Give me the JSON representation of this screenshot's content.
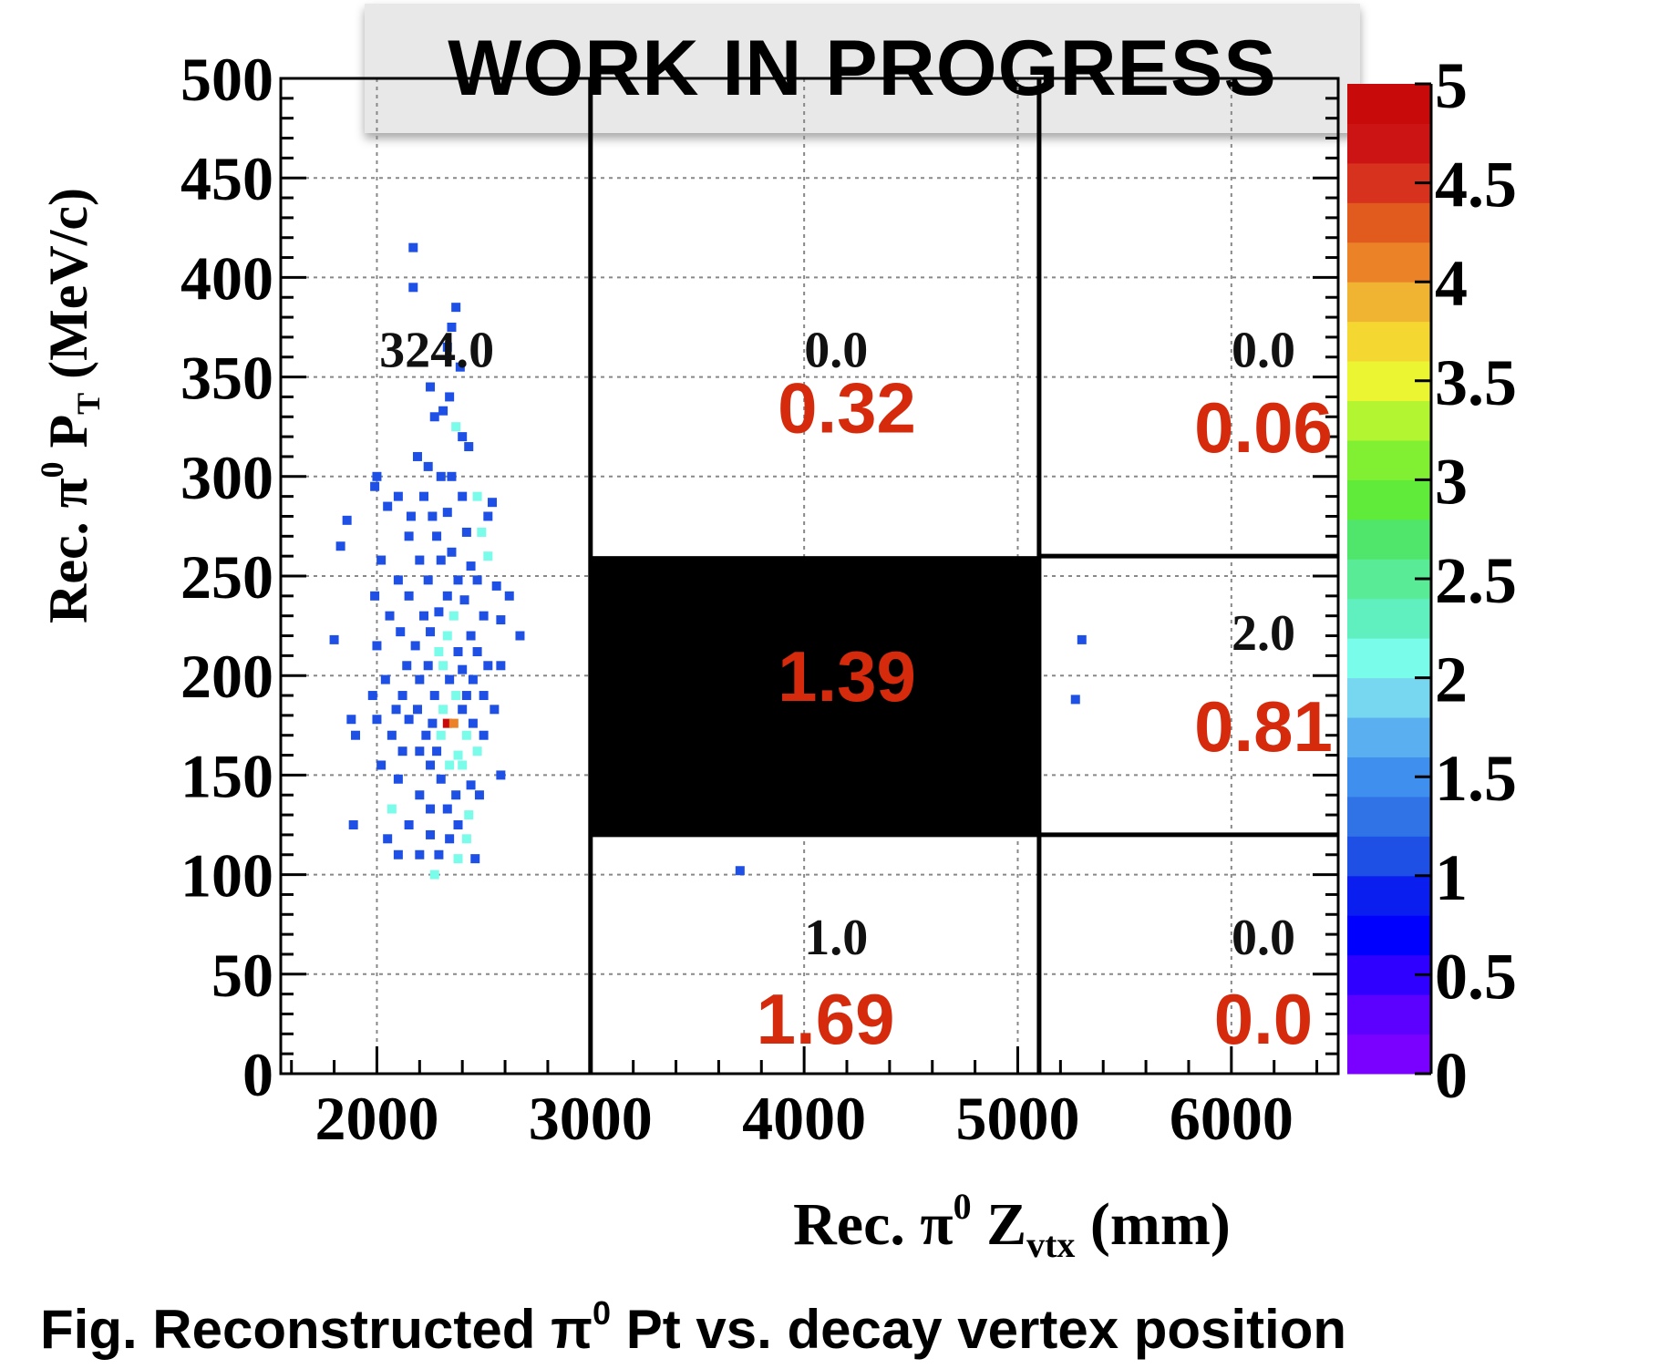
{
  "banner": "WORK IN PROGRESS",
  "caption": {
    "prefix": "Fig. Reconstructed π",
    "sup": "0",
    "suffix": " Pt vs. decay vertex position"
  },
  "colors": {
    "annotation_red": "#d62a0c",
    "region_fill": "#000000",
    "axis": "#000000",
    "grid": "#888888"
  },
  "chart_data": {
    "type": "heatmap",
    "title": "",
    "xlabel": {
      "main": "Rec.  π",
      "sup": "0",
      "var": " Z",
      "sub": "vtx",
      "unit": " (mm)"
    },
    "ylabel": {
      "main": "Rec.  π",
      "sup": "0",
      "var": " P",
      "sub": "T",
      "unit": " (MeV/c)"
    },
    "xlim": [
      1550,
      6500
    ],
    "ylim": [
      0,
      500
    ],
    "x_ticks": [
      2000,
      3000,
      4000,
      5000,
      6000
    ],
    "y_ticks": [
      0,
      50,
      100,
      150,
      200,
      250,
      300,
      350,
      400,
      450,
      500
    ],
    "grid": true,
    "colorbar": {
      "range": [
        0,
        5
      ],
      "tick_labels": [
        "0",
        "0.5",
        "1",
        "1.5",
        "2",
        "2.5",
        "3",
        "3.5",
        "4",
        "4.5",
        "5"
      ],
      "colors": [
        "#7a00ff",
        "#5c00ff",
        "#2f00ff",
        "#0000ff",
        "#0a1ef0",
        "#1f50e6",
        "#2f73e6",
        "#3f8fee",
        "#5aaff0",
        "#78d7f0",
        "#7afcea",
        "#60f0c0",
        "#5aeb96",
        "#50e66b",
        "#60eb3a",
        "#82f032",
        "#b4f532",
        "#ebf532",
        "#f5d732",
        "#f0b432",
        "#eb8228",
        "#e15a1e",
        "#d7321e",
        "#cd1414",
        "#c80a0a"
      ]
    },
    "region_boundaries": {
      "vertical": [
        3000,
        5100
      ],
      "horizontal": [
        {
          "y": 120,
          "x_from": 3000,
          "x_to": 6500
        },
        {
          "y": 260,
          "x_from": 5100,
          "x_to": 6500
        }
      ]
    },
    "signal_region": {
      "x": [
        3000,
        5100
      ],
      "y": [
        120,
        260
      ]
    },
    "region_counts": [
      {
        "x": 2280,
        "y": 355,
        "label": "324.0"
      },
      {
        "x": 4150,
        "y": 355,
        "label": "0.0"
      },
      {
        "x": 6150,
        "y": 355,
        "label": "0.0"
      },
      {
        "x": 6150,
        "y": 213,
        "label": "2.0"
      },
      {
        "x": 4150,
        "y": 60,
        "label": "1.0"
      },
      {
        "x": 6150,
        "y": 60,
        "label": "0.0"
      }
    ],
    "expectations": [
      {
        "x": 4200,
        "y": 335,
        "label": "0.32"
      },
      {
        "x": 6150,
        "y": 325,
        "label": "0.06"
      },
      {
        "x": 4200,
        "y": 200,
        "label": "1.39"
      },
      {
        "x": 6150,
        "y": 175,
        "label": "0.81"
      },
      {
        "x": 4100,
        "y": 28,
        "label": "1.69"
      },
      {
        "x": 6150,
        "y": 28,
        "label": "0.0"
      }
    ],
    "cells": [
      [
        2170,
        415,
        1
      ],
      [
        2170,
        395,
        1
      ],
      [
        2370,
        385,
        1
      ],
      [
        2350,
        375,
        1
      ],
      [
        2330,
        365,
        1
      ],
      [
        2390,
        355,
        1
      ],
      [
        2250,
        345,
        1
      ],
      [
        2340,
        340,
        1
      ],
      [
        2310,
        333,
        1
      ],
      [
        2370,
        325,
        2
      ],
      [
        2400,
        320,
        1
      ],
      [
        2430,
        315,
        1
      ],
      [
        2270,
        330,
        1
      ],
      [
        2190,
        310,
        1
      ],
      [
        2240,
        305,
        1
      ],
      [
        2300,
        300,
        1
      ],
      [
        2350,
        300,
        1
      ],
      [
        2000,
        300,
        1
      ],
      [
        1990,
        295,
        1
      ],
      [
        2100,
        290,
        1
      ],
      [
        2220,
        290,
        1
      ],
      [
        2400,
        290,
        1
      ],
      [
        2470,
        290,
        2
      ],
      [
        2540,
        287,
        1
      ],
      [
        2050,
        285,
        1
      ],
      [
        2160,
        280,
        1
      ],
      [
        2260,
        280,
        1
      ],
      [
        2330,
        282,
        1
      ],
      [
        1860,
        278,
        1
      ],
      [
        2520,
        280,
        1
      ],
      [
        2150,
        270,
        1
      ],
      [
        2280,
        270,
        1
      ],
      [
        2420,
        272,
        1
      ],
      [
        2490,
        272,
        2
      ],
      [
        1830,
        265,
        1
      ],
      [
        2350,
        262,
        1
      ],
      [
        2020,
        258,
        1
      ],
      [
        2200,
        258,
        1
      ],
      [
        2300,
        258,
        1
      ],
      [
        2440,
        255,
        1
      ],
      [
        2520,
        260,
        2
      ],
      [
        2100,
        248,
        1
      ],
      [
        2240,
        248,
        1
      ],
      [
        2380,
        248,
        1
      ],
      [
        2470,
        248,
        1
      ],
      [
        2560,
        245,
        1
      ],
      [
        1990,
        240,
        1
      ],
      [
        2150,
        240,
        1
      ],
      [
        2330,
        240,
        1
      ],
      [
        2410,
        238,
        1
      ],
      [
        2620,
        240,
        1
      ],
      [
        2060,
        230,
        1
      ],
      [
        2220,
        230,
        1
      ],
      [
        2290,
        232,
        1
      ],
      [
        2360,
        230,
        2
      ],
      [
        2500,
        230,
        1
      ],
      [
        2580,
        228,
        1
      ],
      [
        2110,
        222,
        1
      ],
      [
        2250,
        222,
        1
      ],
      [
        2330,
        220,
        2
      ],
      [
        2440,
        220,
        1
      ],
      [
        2670,
        220,
        1
      ],
      [
        1800,
        218,
        1
      ],
      [
        2000,
        215,
        1
      ],
      [
        2180,
        215,
        1
      ],
      [
        2290,
        212,
        2
      ],
      [
        2380,
        212,
        1
      ],
      [
        2470,
        212,
        1
      ],
      [
        2140,
        205,
        1
      ],
      [
        2240,
        205,
        1
      ],
      [
        2310,
        205,
        2
      ],
      [
        2400,
        203,
        1
      ],
      [
        2520,
        205,
        1
      ],
      [
        2580,
        205,
        1
      ],
      [
        2040,
        198,
        1
      ],
      [
        2200,
        198,
        1
      ],
      [
        2340,
        198,
        1
      ],
      [
        2450,
        198,
        1
      ],
      [
        1980,
        190,
        1
      ],
      [
        2120,
        190,
        1
      ],
      [
        2270,
        190,
        1
      ],
      [
        2370,
        190,
        2
      ],
      [
        2420,
        190,
        1
      ],
      [
        2500,
        190,
        1
      ],
      [
        2090,
        183,
        1
      ],
      [
        2190,
        183,
        1
      ],
      [
        2310,
        183,
        2
      ],
      [
        2400,
        183,
        1
      ],
      [
        2550,
        183,
        1
      ],
      [
        1880,
        178,
        1
      ],
      [
        2000,
        178,
        1
      ],
      [
        2150,
        178,
        1
      ],
      [
        2260,
        176,
        1
      ],
      [
        2330,
        176,
        5
      ],
      [
        2360,
        176,
        4
      ],
      [
        2450,
        176,
        1
      ],
      [
        1900,
        170,
        1
      ],
      [
        2070,
        170,
        1
      ],
      [
        2230,
        170,
        1
      ],
      [
        2300,
        170,
        2
      ],
      [
        2420,
        170,
        2
      ],
      [
        2500,
        170,
        1
      ],
      [
        2120,
        162,
        1
      ],
      [
        2200,
        162,
        1
      ],
      [
        2280,
        162,
        1
      ],
      [
        2380,
        160,
        2
      ],
      [
        2470,
        162,
        2
      ],
      [
        2020,
        155,
        1
      ],
      [
        2250,
        155,
        1
      ],
      [
        2340,
        155,
        2
      ],
      [
        2400,
        155,
        2
      ],
      [
        2580,
        150,
        1
      ],
      [
        2100,
        148,
        1
      ],
      [
        2300,
        148,
        1
      ],
      [
        2440,
        145,
        1
      ],
      [
        2200,
        140,
        1
      ],
      [
        2370,
        140,
        1
      ],
      [
        2480,
        140,
        1
      ],
      [
        2070,
        133,
        2
      ],
      [
        2250,
        133,
        1
      ],
      [
        2330,
        133,
        1
      ],
      [
        2430,
        130,
        2
      ],
      [
        2380,
        125,
        1
      ],
      [
        1890,
        125,
        1
      ],
      [
        2150,
        125,
        1
      ],
      [
        2250,
        120,
        1
      ],
      [
        2050,
        118,
        1
      ],
      [
        2340,
        118,
        1
      ],
      [
        2420,
        118,
        2
      ],
      [
        2100,
        110,
        1
      ],
      [
        2200,
        110,
        1
      ],
      [
        2290,
        110,
        1
      ],
      [
        2380,
        108,
        2
      ],
      [
        2460,
        108,
        1
      ],
      [
        2270,
        100,
        2
      ],
      [
        3700,
        102,
        1
      ],
      [
        5300,
        218,
        1
      ],
      [
        5270,
        188,
        1
      ]
    ]
  }
}
